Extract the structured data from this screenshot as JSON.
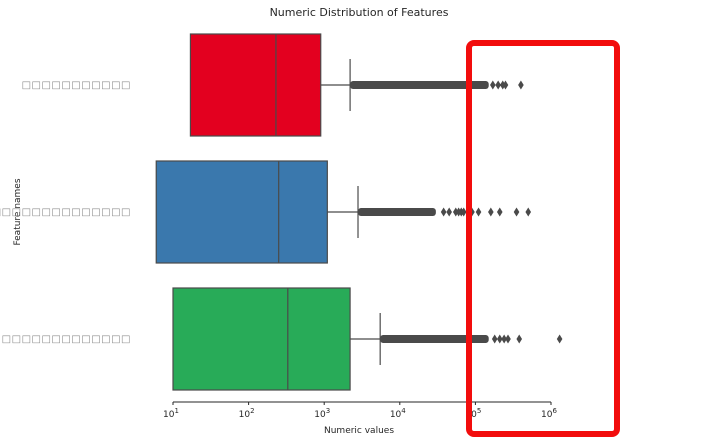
{
  "chart_data": {
    "type": "boxplot",
    "orientation": "horizontal",
    "title": "Numeric Distribution of Features",
    "xlabel": "Numeric values",
    "ylabel": "Feature names",
    "xscale": "log",
    "xlim": [
      8,
      1000000
    ],
    "xticks": [
      {
        "value": 10,
        "base": "10",
        "exp": "1"
      },
      {
        "value": 100,
        "base": "10",
        "exp": "2"
      },
      {
        "value": 1000,
        "base": "10",
        "exp": "3"
      },
      {
        "value": 10000,
        "base": "10",
        "exp": "4"
      },
      {
        "value": 100000,
        "base": "10",
        "exp": "5"
      },
      {
        "value": 1000000,
        "base": "10",
        "exp": "6"
      }
    ],
    "grid": false,
    "series": [
      {
        "label": "□□□□□□□□□□□",
        "color": "#e3001f",
        "q1": 17,
        "median": 230,
        "q3": 900,
        "whisker_low": 17,
        "whisker_high": 2200,
        "outlier_range": [
          2200,
          150000
        ],
        "outliers_extra": [
          170000,
          200000,
          230000,
          250000,
          400000
        ]
      },
      {
        "label": "□□□□□□□□□□□□□□",
        "color": "#3a78ad",
        "q1": 6,
        "median": 250,
        "q3": 1100,
        "whisker_low": 6,
        "whisker_high": 2800,
        "outlier_range": [
          2800,
          30000
        ],
        "outliers_extra": [
          38000,
          45000,
          55000,
          60000,
          65000,
          70000,
          80000,
          90000,
          110000,
          160000,
          210000,
          350000,
          500000
        ]
      },
      {
        "label": "□□□□□□□□□□□□□",
        "color": "#28ab58",
        "q1": 10,
        "median": 330,
        "q3": 2200,
        "whisker_low": 10,
        "whisker_high": 5500,
        "outlier_range": [
          5500,
          150000
        ],
        "outliers_extra": [
          180000,
          210000,
          240000,
          270000,
          380000,
          1300000
        ]
      }
    ],
    "highlight_box": {
      "color": "#f20d0d",
      "x_from": 80000,
      "x_to": 4500000
    }
  }
}
